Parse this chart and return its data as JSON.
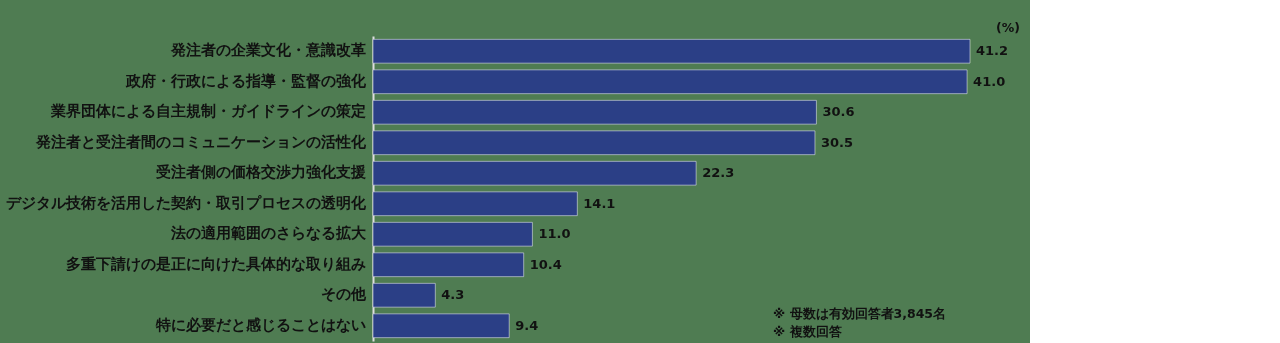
{
  "chart_data": {
    "type": "bar",
    "orientation": "horizontal",
    "categories": [
      "発注者の企業文化・意識改革",
      "政府・行政による指導・監督の強化",
      "業界団体による自主規制・ガイドラインの策定",
      "発注者と受注者間のコミュニケーションの活性化",
      "受注者側の価格交渉力強化支援",
      "デジタル技術を活用した契約・取引プロセスの透明化",
      "法の適用範囲のさらなる拡大",
      "多重下請けの是正に向けた具体的な取り組み",
      "その他",
      "特に必要だと感じることはない"
    ],
    "values": [
      41.2,
      41.0,
      30.6,
      30.5,
      22.3,
      14.1,
      11.0,
      10.4,
      4.3,
      9.4
    ],
    "value_labels": [
      "41.2",
      "41.0",
      "30.6",
      "30.5",
      "22.3",
      "14.1",
      "11.0",
      "10.4",
      "4.3",
      "9.4"
    ],
    "color": "#2b3f86",
    "annotations": [
      "(%)",
      "※ 母数は有効回答者3,845名",
      "※ 複数回答"
    ],
    "grid": false
  }
}
